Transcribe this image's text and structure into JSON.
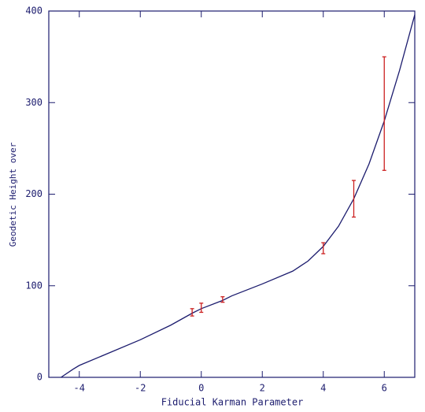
{
  "chart_data": {
    "type": "line",
    "x_label": "Fiducial Karman Parameter",
    "y_label": "Geodetic Height over",
    "xlim": [
      -5,
      7
    ],
    "xticks": [
      -4,
      -2,
      0,
      2,
      4,
      6
    ],
    "ylim": [
      0,
      400
    ],
    "yticks": [
      0,
      100,
      200,
      300,
      400
    ],
    "axis_color": "#1c1c6e",
    "series": [
      {
        "type": "line",
        "color": "#1c1c6e",
        "x": [
          -4.6,
          -4.2,
          -4,
          -3,
          -2,
          -1,
          -0.3,
          0,
          0.7,
          1,
          2,
          3,
          3.5,
          4,
          4.5,
          5,
          5.5,
          6,
          6.5,
          7
        ],
        "values": [
          0,
          9,
          13,
          27,
          41,
          57,
          70,
          75,
          84,
          89,
          102,
          116,
          127,
          143,
          165,
          195,
          233,
          280,
          335,
          396
        ]
      },
      {
        "type": "errorbar",
        "color": "#cc2020",
        "x": [
          -0.3,
          0,
          0.7,
          4,
          5,
          6
        ],
        "values": [
          71,
          76,
          85,
          141,
          195,
          288
        ],
        "errors": [
          4,
          5,
          3,
          6,
          20,
          62
        ]
      }
    ]
  }
}
